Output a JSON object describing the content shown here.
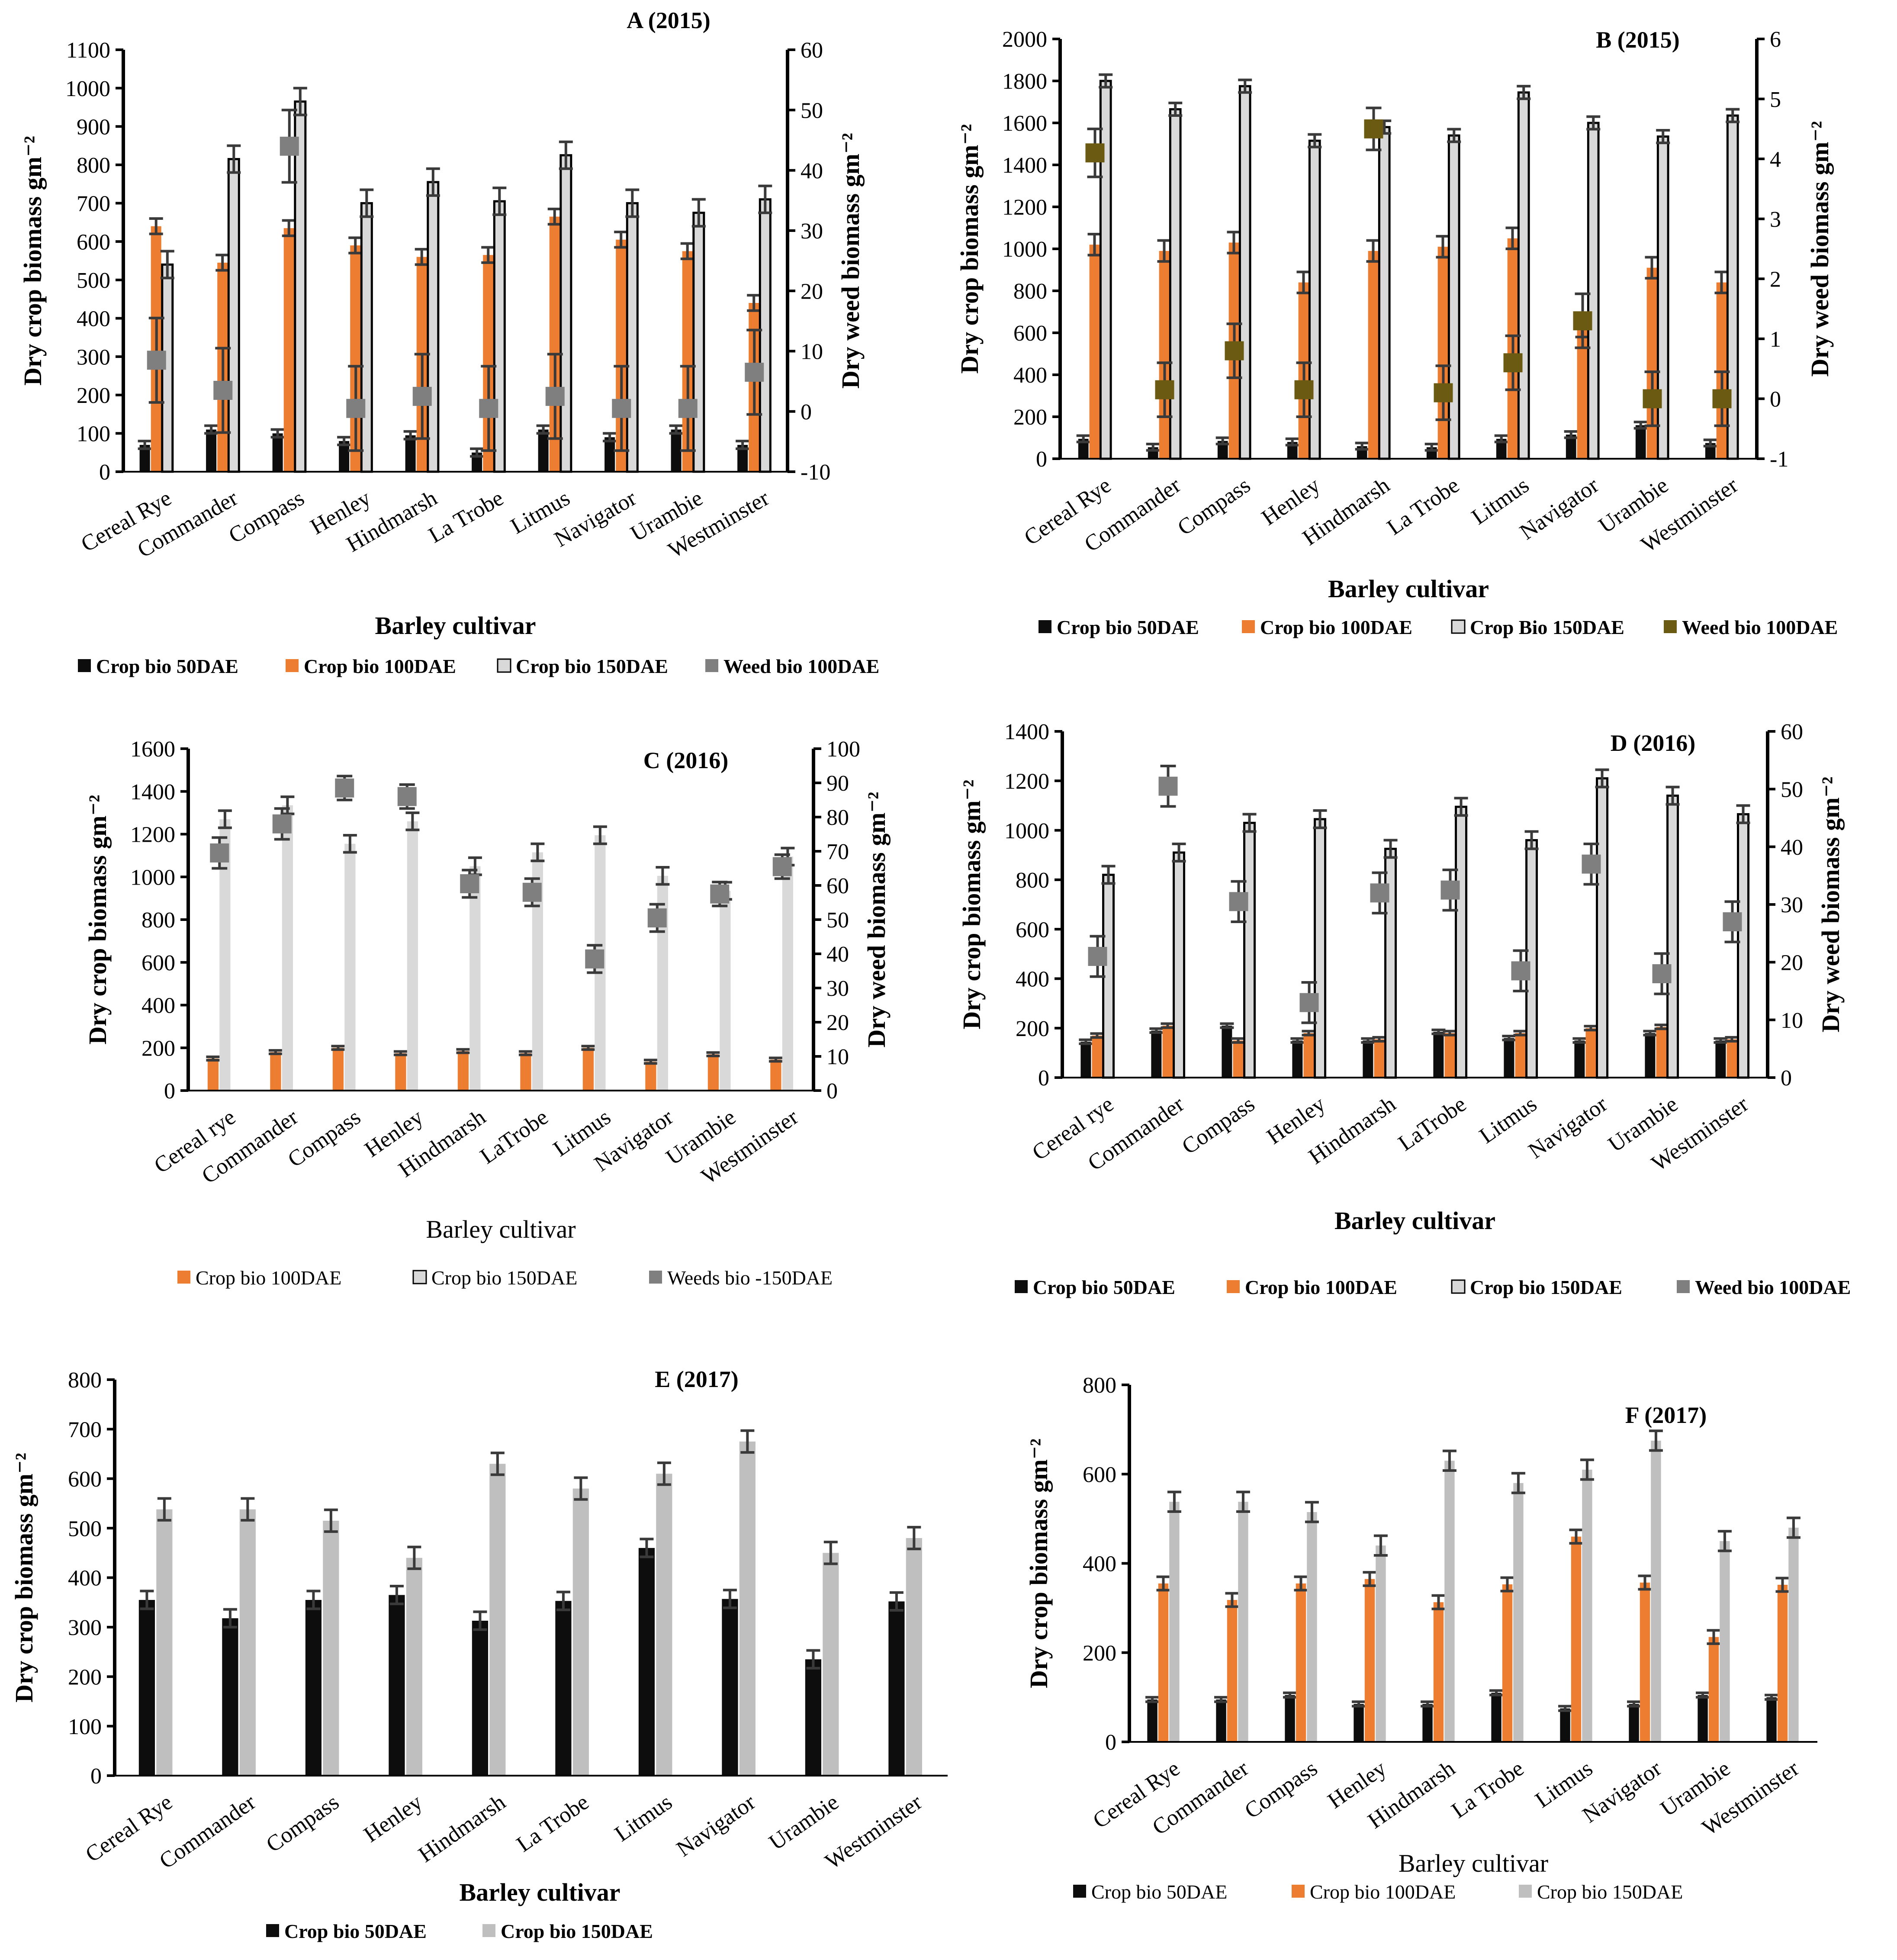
{
  "colors": {
    "black": "#0d0d0d",
    "orange": "#ed7d31",
    "light_gray": "#d9d9d9",
    "mid_gray": "#bfbfbf",
    "weed_gray": "#7f7f7f",
    "weed_olive": "#6b5a12",
    "axis": "#000000",
    "error_bar": "#3a3a3a"
  },
  "chart_data": [
    {
      "type": "bar",
      "title": "A (2015)",
      "xlabel": "Barley cultivar",
      "ylabel": "Dry crop biomass gm⁻²",
      "y2label": "Dry weed biomass gm⁻²",
      "ylim": [
        0,
        1100
      ],
      "yticks": [
        "0",
        "100",
        "200",
        "300",
        "400",
        "500",
        "600",
        "700",
        "800",
        "900",
        "1000",
        "1100"
      ],
      "y2lim": [
        -10,
        60
      ],
      "y2ticks": [
        "-10",
        "0",
        "10",
        "20",
        "30",
        "40",
        "50",
        "60"
      ],
      "categories": [
        "Cereal Rye",
        "Commander",
        "Compass",
        "Henley",
        "Hindmarsh",
        "La Trobe",
        "Litmus",
        "Navigator",
        "Urambie",
        "Westminster"
      ],
      "series": [
        {
          "name": "Crop bio 50DAE",
          "color": "black",
          "values": [
            70,
            110,
            100,
            80,
            95,
            50,
            110,
            90,
            110,
            70
          ],
          "errors": [
            10,
            10,
            10,
            10,
            10,
            10,
            10,
            10,
            10,
            10
          ]
        },
        {
          "name": "Crop bio 100DAE",
          "color": "orange",
          "values": [
            640,
            545,
            635,
            590,
            560,
            565,
            665,
            605,
            575,
            440
          ],
          "errors": [
            20,
            20,
            20,
            20,
            20,
            20,
            20,
            20,
            20,
            20
          ]
        },
        {
          "name": "Crop bio 150DAE",
          "color": "light_gray",
          "values": [
            540,
            815,
            965,
            700,
            755,
            705,
            825,
            700,
            675,
            710
          ],
          "errors": [
            35,
            35,
            35,
            35,
            35,
            35,
            35,
            35,
            35,
            35
          ]
        }
      ],
      "weed": {
        "name": "Weed bio 100DAE",
        "color": "weed_gray",
        "values": [
          8.5,
          3.5,
          44,
          0.5,
          2.5,
          0.5,
          2.5,
          0.5,
          0.5,
          6.5
        ],
        "errors": [
          7,
          7,
          6,
          7,
          7,
          7,
          7,
          7,
          7,
          7
        ]
      }
    },
    {
      "type": "bar",
      "title": "B (2015)",
      "xlabel": "Barley cultivar",
      "ylabel": "Dry crop biomass gm⁻²",
      "y2label": "Dry weed biomass gm⁻²",
      "ylim": [
        0,
        2000
      ],
      "yticks": [
        "0",
        "200",
        "400",
        "600",
        "800",
        "1000",
        "1200",
        "1400",
        "1600",
        "1800",
        "2000"
      ],
      "y2lim": [
        -1,
        6
      ],
      "y2ticks": [
        "-1",
        "0",
        "1",
        "2",
        "3",
        "4",
        "5",
        "6"
      ],
      "categories": [
        "Cereal Rye",
        "Commander",
        "Compass",
        "Henley",
        "Hindmarsh",
        "La Trobe",
        "Litmus",
        "Navigator",
        "Urambie",
        "Westminster"
      ],
      "series": [
        {
          "name": "Crop  bio 50DAE",
          "color": "black",
          "values": [
            95,
            55,
            85,
            80,
            60,
            55,
            95,
            115,
            160,
            75
          ],
          "errors": [
            15,
            15,
            15,
            15,
            15,
            15,
            15,
            15,
            15,
            15
          ]
        },
        {
          "name": "Crop bio 100DAE",
          "color": "orange",
          "values": [
            1020,
            990,
            1030,
            840,
            990,
            1010,
            1050,
            630,
            910,
            840
          ],
          "errors": [
            50,
            50,
            50,
            50,
            50,
            50,
            50,
            50,
            50,
            50
          ]
        },
        {
          "name": "Crop Bio 150DAE",
          "color": "light_gray",
          "values": [
            1800,
            1665,
            1775,
            1515,
            1580,
            1540,
            1745,
            1600,
            1535,
            1635
          ],
          "errors": [
            30,
            30,
            30,
            30,
            30,
            30,
            30,
            30,
            30,
            30
          ]
        }
      ],
      "weed": {
        "name": "Weed bio 100DAE",
        "color": "weed_olive",
        "values": [
          4.1,
          0.15,
          0.8,
          0.15,
          4.5,
          0.1,
          0.6,
          1.3,
          0.0,
          0.0
        ],
        "errors": [
          0.4,
          0.45,
          0.45,
          0.45,
          0.35,
          0.45,
          0.45,
          0.45,
          0.45,
          0.45
        ]
      }
    },
    {
      "type": "bar",
      "title": "C (2016)",
      "xlabel": "Barley cultivar",
      "ylabel": "Dry crop biomass gm⁻²",
      "y2label": "Dry weed biomass gm⁻²",
      "ylim": [
        0,
        1600
      ],
      "yticks": [
        "0",
        "200",
        "400",
        "600",
        "800",
        "1000",
        "1200",
        "1400",
        "1600"
      ],
      "y2lim": [
        0,
        100
      ],
      "y2ticks": [
        "0",
        "10",
        "20",
        "30",
        "40",
        "50",
        "60",
        "70",
        "80",
        "90",
        "100"
      ],
      "categories": [
        "Cereal rye",
        "Commander",
        "Compass",
        "Henley",
        "Hindmarsh",
        "LaTrobe",
        "Litmus",
        "Navigator",
        "Urambie",
        "Westminster"
      ],
      "series": [
        {
          "name": "Crop bio 100DAE",
          "color": "orange",
          "values": [
            150,
            180,
            200,
            175,
            185,
            175,
            200,
            135,
            170,
            145
          ],
          "errors": [
            8,
            8,
            8,
            8,
            8,
            8,
            8,
            8,
            8,
            8
          ]
        },
        {
          "name": "Crop bio 150DAE",
          "color": "light_gray",
          "values": [
            1270,
            1335,
            1155,
            1260,
            1050,
            1115,
            1195,
            1005,
            935,
            1095
          ],
          "errors": [
            40,
            40,
            40,
            40,
            40,
            40,
            40,
            40,
            40,
            40
          ]
        }
      ],
      "weed": {
        "name": "Weeds bio -150DAE",
        "color": "weed_gray",
        "values": [
          69.5,
          78,
          88.5,
          86,
          60.5,
          58,
          38.5,
          50.5,
          57.5,
          65.5
        ],
        "errors": [
          4.5,
          4.5,
          3.5,
          3.5,
          4,
          4,
          4,
          4,
          3.5,
          3.5
        ]
      }
    },
    {
      "type": "bar",
      "title": "D (2016)",
      "xlabel": "Barley cultivar",
      "ylabel": "Dry crop biomass gm⁻²",
      "y2label": "Dry weed biomass gm⁻²",
      "ylim": [
        0,
        1400
      ],
      "yticks": [
        "0",
        "200",
        "400",
        "600",
        "800",
        "1000",
        "1200",
        "1400"
      ],
      "y2lim": [
        0,
        60
      ],
      "y2ticks": [
        "0",
        "10",
        "20",
        "30",
        "40",
        "50",
        "60"
      ],
      "categories": [
        "Cereal rye",
        "Commander",
        "Compass",
        "Henley",
        "Hindmarsh",
        "LaTrobe",
        "Litmus",
        "Navigator",
        "Urambie",
        "Westminster"
      ],
      "series": [
        {
          "name": "Crop bio 50DAE",
          "color": "black",
          "values": [
            145,
            190,
            210,
            150,
            150,
            185,
            160,
            150,
            180,
            150
          ],
          "errors": [
            8,
            8,
            8,
            8,
            8,
            8,
            8,
            8,
            8,
            8
          ]
        },
        {
          "name": "Crop bio 100DAE",
          "color": "orange",
          "values": [
            170,
            210,
            150,
            180,
            155,
            180,
            180,
            200,
            205,
            155
          ],
          "errors": [
            8,
            8,
            8,
            8,
            8,
            8,
            8,
            8,
            8,
            8
          ]
        },
        {
          "name": "Crop bio 150DAE",
          "color": "light_gray",
          "values": [
            820,
            910,
            1030,
            1045,
            925,
            1095,
            960,
            1210,
            1140,
            1065
          ],
          "errors": [
            35,
            35,
            35,
            35,
            35,
            35,
            35,
            35,
            35,
            35
          ]
        }
      ],
      "weed": {
        "name": "Weed bio 100DAE",
        "color": "weed_gray",
        "values": [
          21,
          50.5,
          30.5,
          13,
          32,
          32.5,
          18.5,
          37,
          18,
          27
        ],
        "errors": [
          3.5,
          3.5,
          3.5,
          3.5,
          3.5,
          3.5,
          3.5,
          3.5,
          3.5,
          3.5
        ]
      }
    },
    {
      "type": "bar",
      "title": "E (2017)",
      "xlabel": "Barley cultivar",
      "ylabel": "Dry crop biomass gm⁻²",
      "ylim": [
        0,
        800
      ],
      "yticks": [
        "0",
        "100",
        "200",
        "300",
        "400",
        "500",
        "600",
        "700",
        "800"
      ],
      "categories": [
        "Cereal Rye",
        "Commander",
        "Compass",
        "Henley",
        "Hindmarsh",
        "La Trobe",
        "Litmus",
        "Navigator",
        "Urambie",
        "Westminster"
      ],
      "series": [
        {
          "name": "Crop bio 50DAE",
          "color": "black",
          "values": [
            355,
            318,
            355,
            365,
            313,
            353,
            460,
            357,
            235,
            352
          ],
          "errors": [
            18,
            18,
            18,
            18,
            18,
            18,
            18,
            18,
            18,
            18
          ]
        },
        {
          "name": "Crop bio 150DAE",
          "color": "mid_gray",
          "values": [
            538,
            538,
            515,
            440,
            630,
            580,
            610,
            675,
            450,
            480
          ],
          "errors": [
            22,
            22,
            22,
            22,
            22,
            22,
            22,
            22,
            22,
            22
          ]
        }
      ]
    },
    {
      "type": "bar",
      "title": "F (2017)",
      "xlabel": "Barley cultivar",
      "ylabel": "Dry crop biomass gm⁻²",
      "ylim": [
        0,
        800
      ],
      "yticks": [
        "0",
        "200",
        "400",
        "600",
        "800"
      ],
      "categories": [
        "Cereal Rye",
        "Commander",
        "Compass",
        "Henley",
        "Hindmarsh",
        "La Trobe",
        "Litmus",
        "Navigator",
        "Urambie",
        "Westminster"
      ],
      "series": [
        {
          "name": "Crop bio 50DAE",
          "color": "black",
          "values": [
            95,
            95,
            105,
            85,
            85,
            110,
            75,
            85,
            105,
            100
          ],
          "errors": [
            5,
            5,
            5,
            5,
            5,
            5,
            5,
            5,
            5,
            5
          ]
        },
        {
          "name": "Crop bio 100DAE",
          "color": "orange",
          "values": [
            355,
            318,
            355,
            365,
            313,
            353,
            460,
            357,
            235,
            352
          ],
          "errors": [
            15,
            15,
            15,
            15,
            15,
            15,
            15,
            15,
            15,
            15
          ]
        },
        {
          "name": "Crop bio 150DAE",
          "color": "mid_gray",
          "values": [
            538,
            538,
            515,
            440,
            630,
            580,
            610,
            675,
            450,
            480
          ],
          "errors": [
            22,
            22,
            22,
            22,
            22,
            22,
            22,
            22,
            22,
            22
          ]
        }
      ]
    }
  ]
}
